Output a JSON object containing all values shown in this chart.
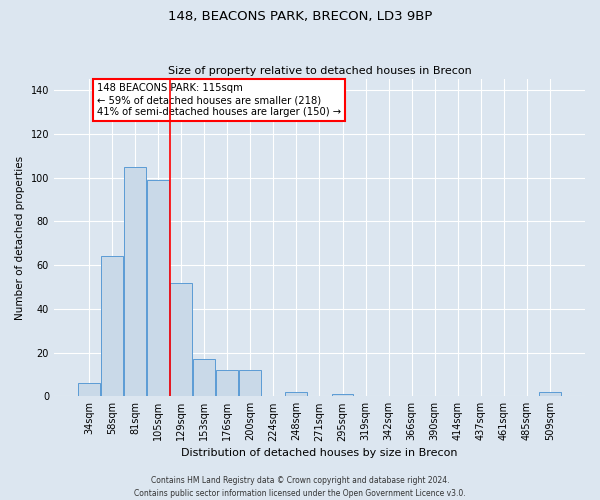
{
  "title1": "148, BEACONS PARK, BRECON, LD3 9BP",
  "title2": "Size of property relative to detached houses in Brecon",
  "xlabel": "Distribution of detached houses by size in Brecon",
  "ylabel": "Number of detached properties",
  "bar_labels": [
    "34sqm",
    "58sqm",
    "81sqm",
    "105sqm",
    "129sqm",
    "153sqm",
    "176sqm",
    "200sqm",
    "224sqm",
    "248sqm",
    "271sqm",
    "295sqm",
    "319sqm",
    "342sqm",
    "366sqm",
    "390sqm",
    "414sqm",
    "437sqm",
    "461sqm",
    "485sqm",
    "509sqm"
  ],
  "bar_values": [
    6,
    64,
    105,
    99,
    52,
    17,
    12,
    12,
    0,
    2,
    0,
    1,
    0,
    0,
    0,
    0,
    0,
    0,
    0,
    0,
    2
  ],
  "bar_color": "#c9d9e8",
  "bar_edge_color": "#5b9bd5",
  "annotation_box_text": "148 BEACONS PARK: 115sqm\n← 59% of detached houses are smaller (218)\n41% of semi-detached houses are larger (150) →",
  "vline_x": 3.5,
  "ylim": [
    0,
    145
  ],
  "yticks": [
    0,
    20,
    40,
    60,
    80,
    100,
    120,
    140
  ],
  "background_color": "#dce6f0",
  "grid_color": "#ffffff",
  "title1_fontsize": 9.5,
  "title2_fontsize": 8.0,
  "ylabel_fontsize": 7.5,
  "xlabel_fontsize": 8.0,
  "tick_fontsize": 7,
  "footer": "Contains HM Land Registry data © Crown copyright and database right 2024.\nContains public sector information licensed under the Open Government Licence v3.0."
}
